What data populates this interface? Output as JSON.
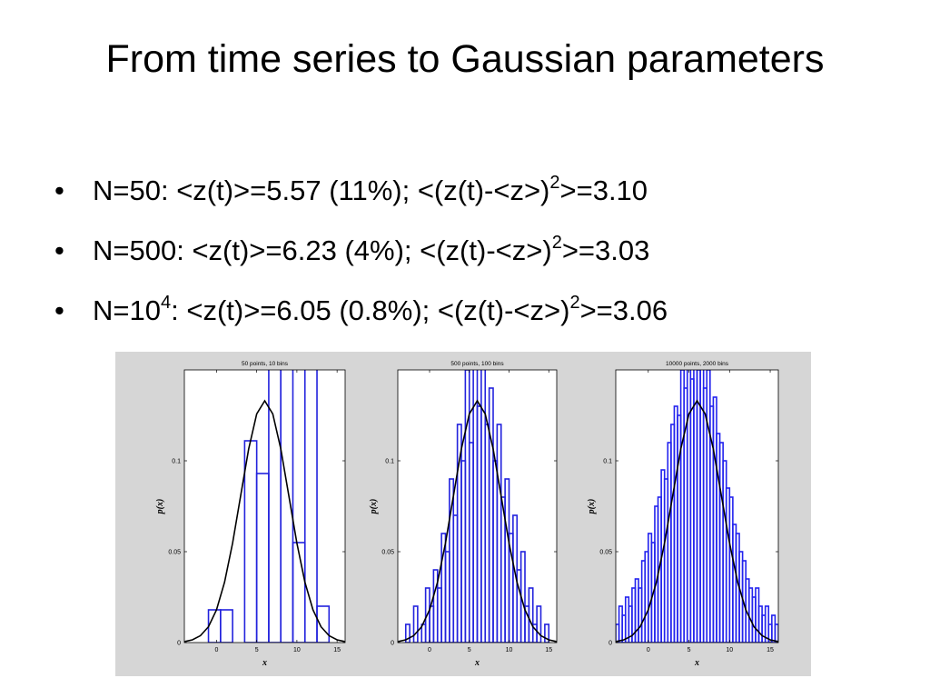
{
  "title": "From time series to Gaussian parameters",
  "bullets": [
    [
      "N=50: <z(t)>=5.57 (11%); <(z(t)-<z>)",
      "2",
      ">=3.10"
    ],
    [
      "N=500: <z(t)>=6.23 (4%); <(z(t)-<z>)",
      "2",
      ">=3.03"
    ],
    [
      "N=10",
      "4",
      ": <z(t)>=6.05 (0.8%); <(z(t)-<z>)",
      "2",
      ">=3.06"
    ]
  ],
  "chart_data": [
    {
      "type": "histogram",
      "title": "50 points, 10 bins",
      "xlabel": "x",
      "ylabel": "p(x)",
      "bins": [
        -1,
        0.5,
        2,
        3.5,
        5,
        6.5,
        8,
        9.5,
        11,
        12.5,
        14
      ],
      "values": [
        0.018,
        0.018,
        0,
        0.111,
        0.093,
        0.17,
        0.17,
        0.055,
        0.17,
        0.02
      ],
      "color": "#2222dd",
      "curve": {
        "color": "#000000",
        "x": [
          -4,
          -3,
          -2,
          -1,
          0,
          1,
          2,
          3,
          4,
          5,
          6,
          7,
          8,
          9,
          10,
          11,
          12,
          13,
          14,
          15,
          16
        ],
        "values": [
          0.0005,
          0.0015,
          0.0038,
          0.0087,
          0.018,
          0.0332,
          0.0547,
          0.0807,
          0.1065,
          0.1258,
          0.133,
          0.1258,
          0.1065,
          0.0807,
          0.0547,
          0.0332,
          0.018,
          0.0087,
          0.0038,
          0.0015,
          0.0005
        ]
      },
      "xlim": [
        -4,
        16
      ],
      "ylim": [
        0,
        0.15
      ],
      "xticks": [
        0,
        5,
        10,
        15
      ],
      "yticks": [
        0,
        0.05,
        0.1
      ]
    },
    {
      "type": "histogram",
      "title": "500 points, 100 bins",
      "xlabel": "x",
      "ylabel": "p(x)",
      "bins": [
        -3,
        -2.5,
        -2,
        -1.5,
        -1,
        -0.5,
        0,
        0.5,
        1,
        1.5,
        2,
        2.5,
        3,
        3.5,
        4,
        4.5,
        5,
        5.5,
        6,
        6.5,
        7,
        7.5,
        8,
        8.5,
        9,
        9.5,
        10,
        10.5,
        11,
        11.5,
        12,
        12.5,
        13,
        13.5,
        14,
        14.5,
        15
      ],
      "values": [
        0.01,
        0,
        0.02,
        0,
        0.01,
        0.03,
        0.02,
        0.04,
        0.03,
        0.06,
        0.05,
        0.09,
        0.07,
        0.12,
        0.1,
        0.15,
        0.11,
        0.16,
        0.13,
        0.17,
        0.12,
        0.14,
        0.1,
        0.12,
        0.08,
        0.09,
        0.06,
        0.07,
        0.04,
        0.05,
        0.02,
        0.03,
        0.01,
        0.02,
        0,
        0.01
      ],
      "color": "#2222dd",
      "curve": {
        "color": "#000000",
        "x": [
          -4,
          -3,
          -2,
          -1,
          0,
          1,
          2,
          3,
          4,
          5,
          6,
          7,
          8,
          9,
          10,
          11,
          12,
          13,
          14,
          15,
          16
        ],
        "values": [
          0.0005,
          0.0015,
          0.0038,
          0.0087,
          0.018,
          0.0332,
          0.0547,
          0.0807,
          0.1065,
          0.1258,
          0.133,
          0.1258,
          0.1065,
          0.0807,
          0.0547,
          0.0332,
          0.018,
          0.0087,
          0.0038,
          0.0015,
          0.0005
        ]
      },
      "xlim": [
        -4,
        16
      ],
      "ylim": [
        0,
        0.15
      ],
      "xticks": [
        0,
        5,
        10,
        15
      ],
      "yticks": [
        0,
        0.05,
        0.1
      ]
    },
    {
      "type": "histogram",
      "title": "10000 points, 2000 bins",
      "xlabel": "x",
      "ylabel": "p(x)",
      "bins": [
        -4,
        -3.6,
        -3.2,
        -2.8,
        -2.4,
        -2,
        -1.6,
        -1.2,
        -0.8,
        -0.4,
        0,
        0.4,
        0.8,
        1.2,
        1.6,
        2,
        2.4,
        2.8,
        3.2,
        3.6,
        4,
        4.4,
        4.8,
        5.2,
        5.6,
        6,
        6.4,
        6.8,
        7.2,
        7.6,
        8,
        8.4,
        8.8,
        9.2,
        9.6,
        10,
        10.4,
        10.8,
        11.2,
        11.6,
        12,
        12.4,
        12.8,
        13.2,
        13.6,
        14,
        14.4,
        14.8,
        15.2,
        15.6,
        16
      ],
      "values": [
        0.01,
        0.02,
        0.015,
        0.025,
        0.02,
        0.03,
        0.035,
        0.03,
        0.045,
        0.05,
        0.06,
        0.055,
        0.075,
        0.08,
        0.095,
        0.09,
        0.11,
        0.12,
        0.13,
        0.125,
        0.15,
        0.14,
        0.16,
        0.145,
        0.165,
        0.15,
        0.16,
        0.14,
        0.15,
        0.13,
        0.135,
        0.115,
        0.11,
        0.1,
        0.085,
        0.08,
        0.065,
        0.06,
        0.05,
        0.045,
        0.035,
        0.03,
        0.025,
        0.03,
        0.02,
        0.015,
        0.02,
        0.01,
        0.015,
        0.01
      ],
      "color": "#2222ee",
      "curve": {
        "color": "#000000",
        "x": [
          -4,
          -3,
          -2,
          -1,
          0,
          1,
          2,
          3,
          4,
          5,
          6,
          7,
          8,
          9,
          10,
          11,
          12,
          13,
          14,
          15,
          16
        ],
        "values": [
          0.0005,
          0.0015,
          0.0038,
          0.0087,
          0.018,
          0.0332,
          0.0547,
          0.0807,
          0.1065,
          0.1258,
          0.133,
          0.1258,
          0.1065,
          0.0807,
          0.0547,
          0.0332,
          0.018,
          0.0087,
          0.0038,
          0.0015,
          0.0005
        ]
      },
      "xlim": [
        -4,
        16
      ],
      "ylim": [
        0,
        0.15
      ],
      "xticks": [
        0,
        5,
        10,
        15
      ],
      "yticks": [
        0,
        0.05,
        0.1
      ]
    }
  ]
}
